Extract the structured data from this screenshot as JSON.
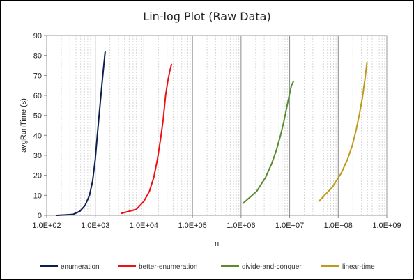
{
  "chart_data": {
    "type": "line",
    "title": "Lin-log Plot (Raw Data)",
    "xlabel": "n",
    "ylabel": "avgRunTime  (s)",
    "xscale": "log",
    "xlim": [
      100,
      1000000000
    ],
    "ylim": [
      0,
      90
    ],
    "x_ticks": [
      100,
      1000,
      10000,
      100000,
      1000000,
      10000000,
      100000000,
      1000000000
    ],
    "x_tick_labels": [
      "1.0E+02",
      "1.0E+03",
      "1.0E+04",
      "1.0E+05",
      "1.0E+06",
      "1.0E+07",
      "1.0E+08",
      "1.0E+09"
    ],
    "y_ticks": [
      0,
      10,
      20,
      30,
      40,
      50,
      60,
      70,
      80,
      90
    ],
    "grid": "x-minor-and-major",
    "legend_position": "bottom",
    "series": [
      {
        "name": "enumeration",
        "color": "#0d1f4e",
        "x": [
          160,
          240,
          350,
          480,
          620,
          760,
          880,
          1000,
          1100,
          1250,
          1400,
          1600
        ],
        "y": [
          0,
          0.2,
          0.5,
          2,
          5,
          10,
          17,
          28,
          40,
          55,
          68,
          82
        ]
      },
      {
        "name": "better-enumeration",
        "color": "#ee1111",
        "x": [
          3500,
          7000,
          10000,
          13000,
          16000,
          19000,
          22000,
          25000,
          28000,
          31000,
          34000,
          37000
        ],
        "y": [
          1,
          3,
          7,
          12,
          19,
          28,
          38,
          48,
          60,
          67,
          72,
          75.5
        ]
      },
      {
        "name": "divide-and-conquer",
        "color": "#5a8a32",
        "x": [
          1100000,
          2100000,
          3200000,
          4300000,
          5400000,
          6500000,
          7600000,
          8700000,
          9800000,
          10900000,
          12000000
        ],
        "y": [
          6,
          12,
          19,
          26,
          33,
          40,
          47,
          54,
          60,
          65,
          67
        ]
      },
      {
        "name": "linear-time",
        "color": "#bf9a1a",
        "x": [
          40000000,
          75000000,
          115000000,
          155000000,
          195000000,
          235000000,
          275000000,
          315000000,
          355000000,
          390000000
        ],
        "y": [
          7,
          14,
          21,
          28,
          35,
          43,
          51,
          59,
          68,
          76.5
        ]
      }
    ]
  }
}
